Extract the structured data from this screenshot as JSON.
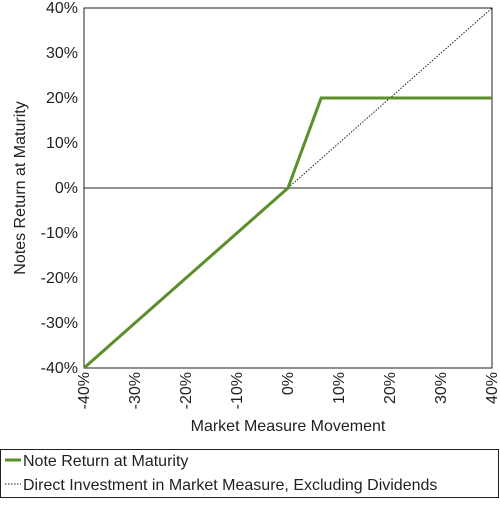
{
  "chart_data": {
    "type": "line",
    "xlabel": "Market Measure Movement",
    "ylabel": "Notes Return at Maturity",
    "xlim": [
      -40,
      40
    ],
    "ylim": [
      -40,
      40
    ],
    "x_ticks": [
      -40,
      -30,
      -20,
      -10,
      0,
      10,
      20,
      30,
      40
    ],
    "x_tick_labels": [
      "-40%",
      "-30%",
      "-20%",
      "-10%",
      "0%",
      "10%",
      "20%",
      "30%",
      "40%"
    ],
    "y_ticks": [
      40,
      30,
      20,
      10,
      0,
      -10,
      -20,
      -30,
      -40
    ],
    "y_tick_labels": [
      "40%",
      "30%",
      "20%",
      "10%",
      "0%",
      "-10%",
      "-20%",
      "-30%",
      "-40%"
    ],
    "grid": false,
    "legend_position": "bottom",
    "series": [
      {
        "name": "Note Return at Maturity",
        "style": "solid",
        "color": "#5a8f29",
        "points": [
          {
            "x": -40,
            "y": -40
          },
          {
            "x": 0,
            "y": 0
          },
          {
            "x": 6.5,
            "y": 20
          },
          {
            "x": 40,
            "y": 20
          }
        ]
      },
      {
        "name": "Direct Investment in Market Measure, Excluding Dividends",
        "style": "dotted",
        "color": "#231f20",
        "points": [
          {
            "x": 0,
            "y": 0
          },
          {
            "x": 40,
            "y": 40
          }
        ]
      }
    ]
  }
}
